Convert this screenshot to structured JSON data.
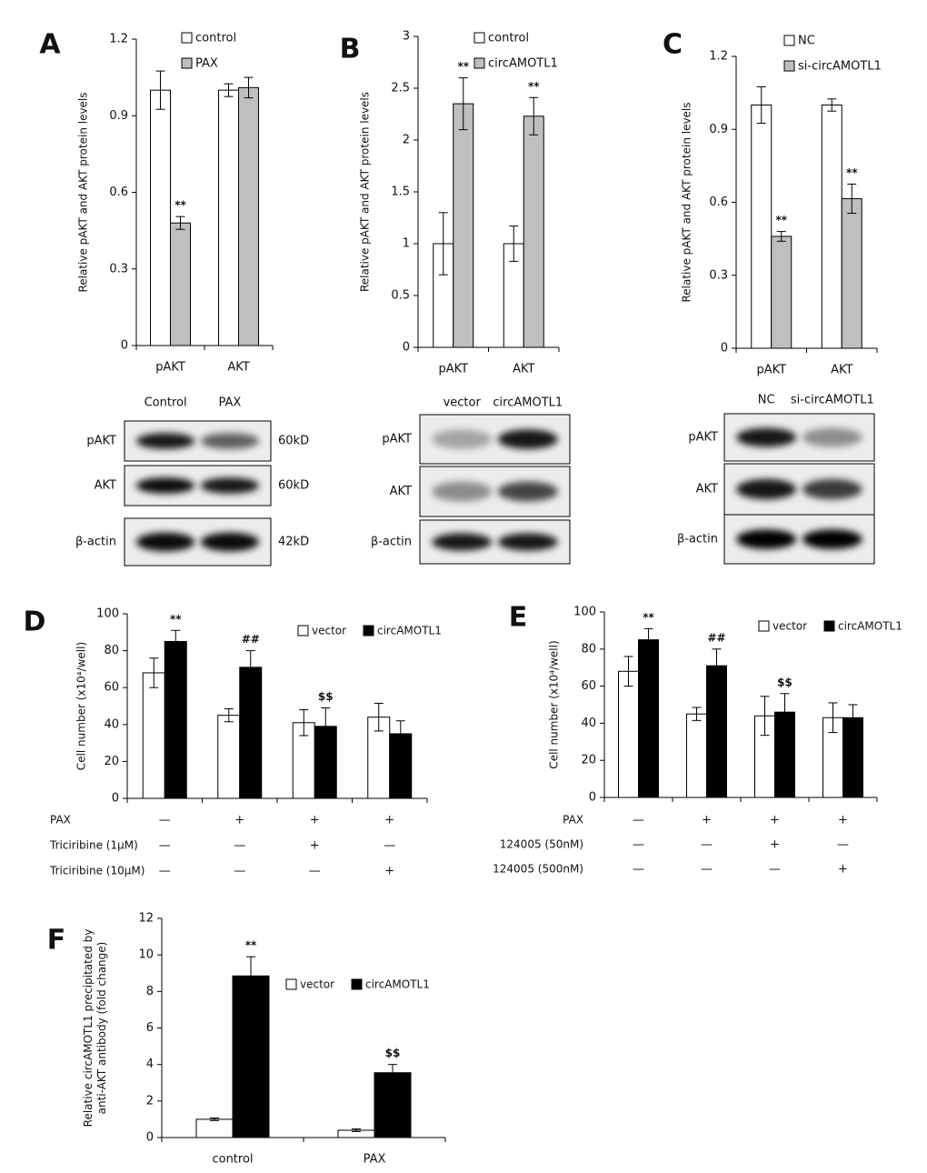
{
  "chart_data": [
    {
      "type": "bar",
      "panel": "A",
      "ylabel": [
        "Relative pAKT and AKT protein levels"
      ],
      "categories": [
        "pAKT",
        "AKT"
      ],
      "series": [
        {
          "name": "control",
          "color": "#ffffff",
          "values": [
            1.0,
            1.0
          ],
          "errors": [
            0.075,
            0.025
          ],
          "sig": [
            null,
            null
          ]
        },
        {
          "name": "PAX",
          "color": "#bfbfbf",
          "values": [
            0.48,
            1.01
          ],
          "errors": [
            0.025,
            0.04
          ],
          "sig": [
            "**",
            null
          ]
        }
      ],
      "ylim": [
        0,
        1.2
      ],
      "yticks": [
        0,
        0.3,
        0.6,
        0.9,
        1.2
      ],
      "legend": "top-right"
    },
    {
      "type": "bar",
      "panel": "B",
      "ylabel": [
        "Relative pAKT and AKT protein levels"
      ],
      "categories": [
        "pAKT",
        "AKT"
      ],
      "series": [
        {
          "name": "control",
          "color": "#ffffff",
          "values": [
            1.0,
            1.0
          ],
          "errors": [
            0.3,
            0.17
          ],
          "sig": [
            null,
            null
          ]
        },
        {
          "name": "circAMOTL1",
          "color": "#bfbfbf",
          "values": [
            2.35,
            2.23
          ],
          "errors": [
            0.25,
            0.18
          ],
          "sig": [
            "**",
            "**"
          ]
        }
      ],
      "ylim": [
        0,
        3
      ],
      "yticks": [
        0,
        0.5,
        1,
        1.5,
        2,
        2.5,
        3
      ],
      "legend": "top-right"
    },
    {
      "type": "bar",
      "panel": "C",
      "ylabel": [
        "Relative pAKT and AKT protein levels"
      ],
      "categories": [
        "pAKT",
        "AKT"
      ],
      "series": [
        {
          "name": "NC",
          "color": "#ffffff",
          "values": [
            1.0,
            1.0
          ],
          "errors": [
            0.075,
            0.025
          ],
          "sig": [
            null,
            null
          ]
        },
        {
          "name": "si-circAMOTL1",
          "color": "#bfbfbf",
          "values": [
            0.46,
            0.615
          ],
          "errors": [
            0.02,
            0.06
          ],
          "sig": [
            "**",
            "**"
          ]
        }
      ],
      "ylim": [
        0,
        1.2
      ],
      "yticks": [
        0,
        0.3,
        0.6,
        0.9,
        1.2
      ],
      "legend": "top-right"
    },
    {
      "type": "bar",
      "panel": "D",
      "ylabel": [
        "Cell number (x10⁴/well)"
      ],
      "categories": [
        null,
        null,
        null,
        null
      ],
      "series": [
        {
          "name": "vector",
          "color": "#ffffff",
          "values": [
            68,
            45,
            41,
            44
          ],
          "errors": [
            8,
            3.5,
            7,
            7.5
          ],
          "sig": [
            null,
            null,
            null,
            null
          ]
        },
        {
          "name": "circAMOTL1",
          "color": "#000000",
          "values": [
            85,
            71,
            39,
            35
          ],
          "errors": [
            6,
            9,
            10,
            7
          ],
          "sig": [
            "**",
            "##",
            "$$",
            null
          ]
        }
      ],
      "ylim": [
        0,
        100
      ],
      "yticks": [
        0,
        20,
        40,
        60,
        80,
        100
      ],
      "legend": "top-right",
      "conditions": [
        {
          "label": "PAX",
          "marks": [
            "—",
            "+",
            "+",
            "+"
          ]
        },
        {
          "label": "Triciribine (1μM)",
          "marks": [
            "—",
            "—",
            "+",
            "—"
          ]
        },
        {
          "label": "Triciribine (10μM)",
          "marks": [
            "—",
            "—",
            "—",
            "+"
          ]
        }
      ]
    },
    {
      "type": "bar",
      "panel": "E",
      "ylabel": [
        "Cell number (x10⁴/well)"
      ],
      "categories": [
        null,
        null,
        null,
        null
      ],
      "series": [
        {
          "name": "vector",
          "color": "#ffffff",
          "values": [
            68,
            45,
            44,
            43
          ],
          "errors": [
            8,
            3.5,
            10.5,
            8
          ],
          "sig": [
            null,
            null,
            null,
            null
          ]
        },
        {
          "name": "circAMOTL1",
          "color": "#000000",
          "values": [
            85,
            71,
            46,
            43
          ],
          "errors": [
            6,
            9,
            10,
            7
          ],
          "sig": [
            "**",
            "##",
            "$$",
            null
          ]
        }
      ],
      "ylim": [
        0,
        100
      ],
      "yticks": [
        0,
        20,
        40,
        60,
        80,
        100
      ],
      "legend": "top-right",
      "conditions": [
        {
          "label": "PAX",
          "marks": [
            "—",
            "+",
            "+",
            "+"
          ]
        },
        {
          "label": "124005 (50nM)",
          "marks": [
            "—",
            "—",
            "+",
            "—"
          ]
        },
        {
          "label": "124005 (500nM)",
          "marks": [
            "—",
            "—",
            "—",
            "+"
          ]
        }
      ]
    },
    {
      "type": "bar",
      "panel": "F",
      "ylabel": [
        "Relative circAMOTL1  precipitated by",
        "anti-AKT antibody  (fold change)"
      ],
      "categories": [
        "control",
        "PAX"
      ],
      "series": [
        {
          "name": "vector",
          "color": "#ffffff",
          "values": [
            1.0,
            0.4
          ],
          "errors": [
            0.07,
            0.07
          ],
          "sig": [
            null,
            null
          ]
        },
        {
          "name": "circAMOTL1",
          "color": "#000000",
          "values": [
            8.85,
            3.55
          ],
          "errors": [
            1.05,
            0.45
          ],
          "sig": [
            "**",
            "$$"
          ]
        }
      ],
      "ylim": [
        0,
        12
      ],
      "yticks": [
        0,
        2,
        4,
        6,
        8,
        10,
        12
      ],
      "legend": "top-right"
    }
  ],
  "blots": [
    {
      "lanes": [
        "Control",
        "PAX"
      ],
      "rows": [
        {
          "label": "pAKT",
          "size": "60kD"
        },
        {
          "label": "AKT",
          "size": "60kD"
        },
        {
          "label": "β-actin",
          "size": "42kD"
        }
      ]
    },
    {
      "lanes": [
        "vector",
        "circAMOTL1"
      ],
      "rows": [
        {
          "label": "pAKT"
        },
        {
          "label": "AKT"
        },
        {
          "label": "β-actin"
        }
      ]
    },
    {
      "lanes": [
        "NC",
        "si-circAMOTL1"
      ],
      "rows": [
        {
          "label": "pAKT"
        },
        {
          "label": "AKT"
        },
        {
          "label": "β-actin"
        }
      ]
    }
  ]
}
